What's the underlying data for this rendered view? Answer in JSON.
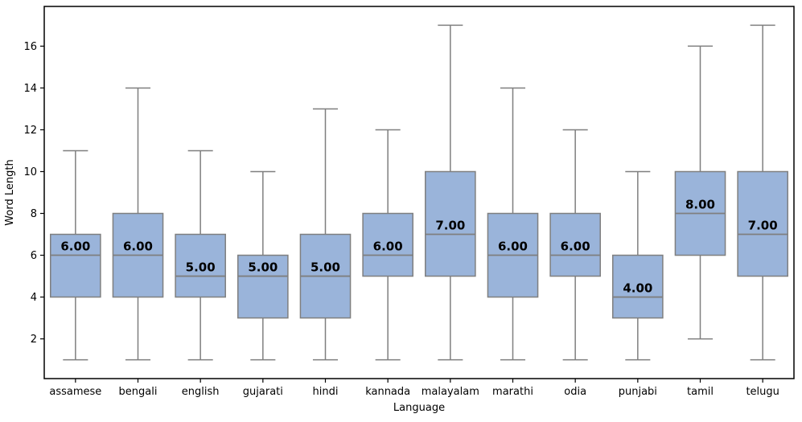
{
  "figure": {
    "background": "#ffffff"
  },
  "chart_data": {
    "type": "boxplot",
    "title": "",
    "xlabel": "Language",
    "ylabel": "Word Length",
    "categories": [
      "assamese",
      "bengali",
      "english",
      "gujarati",
      "hindi",
      "kannada",
      "malayalam",
      "marathi",
      "odia",
      "punjabi",
      "tamil",
      "telugu"
    ],
    "yticks": [
      2,
      4,
      6,
      8,
      10,
      12,
      14,
      16
    ],
    "ylim": [
      0.1,
      17.9
    ],
    "grid": false,
    "legend": "none",
    "series": [
      {
        "category": "assamese",
        "whisker_low": 1,
        "q1": 4,
        "median": 6,
        "q3": 7,
        "whisker_high": 11,
        "median_label": "6.00"
      },
      {
        "category": "bengali",
        "whisker_low": 1,
        "q1": 4,
        "median": 6,
        "q3": 8,
        "whisker_high": 14,
        "median_label": "6.00"
      },
      {
        "category": "english",
        "whisker_low": 1,
        "q1": 4,
        "median": 5,
        "q3": 7,
        "whisker_high": 11,
        "median_label": "5.00"
      },
      {
        "category": "gujarati",
        "whisker_low": 1,
        "q1": 3,
        "median": 5,
        "q3": 6,
        "whisker_high": 10,
        "median_label": "5.00"
      },
      {
        "category": "hindi",
        "whisker_low": 1,
        "q1": 3,
        "median": 5,
        "q3": 7,
        "whisker_high": 13,
        "median_label": "5.00"
      },
      {
        "category": "kannada",
        "whisker_low": 1,
        "q1": 5,
        "median": 6,
        "q3": 8,
        "whisker_high": 12,
        "median_label": "6.00"
      },
      {
        "category": "malayalam",
        "whisker_low": 1,
        "q1": 5,
        "median": 7,
        "q3": 10,
        "whisker_high": 17,
        "median_label": "7.00"
      },
      {
        "category": "marathi",
        "whisker_low": 1,
        "q1": 4,
        "median": 6,
        "q3": 8,
        "whisker_high": 14,
        "median_label": "6.00"
      },
      {
        "category": "odia",
        "whisker_low": 1,
        "q1": 5,
        "median": 6,
        "q3": 8,
        "whisker_high": 12,
        "median_label": "6.00"
      },
      {
        "category": "punjabi",
        "whisker_low": 1,
        "q1": 3,
        "median": 4,
        "q3": 6,
        "whisker_high": 10,
        "median_label": "4.00"
      },
      {
        "category": "tamil",
        "whisker_low": 2,
        "q1": 6,
        "median": 8,
        "q3": 10,
        "whisker_high": 16,
        "median_label": "8.00"
      },
      {
        "category": "telugu",
        "whisker_low": 1,
        "q1": 5,
        "median": 7,
        "q3": 10,
        "whisker_high": 17,
        "median_label": "7.00"
      }
    ],
    "colors": {
      "box_fill": "#9ab4da",
      "box_edge": "#7f7f7f",
      "whisker": "#7f7f7f",
      "median_line": "#7f7f7f",
      "spine": "#000000",
      "tick_label": "#000000",
      "median_label": "#000000"
    }
  }
}
